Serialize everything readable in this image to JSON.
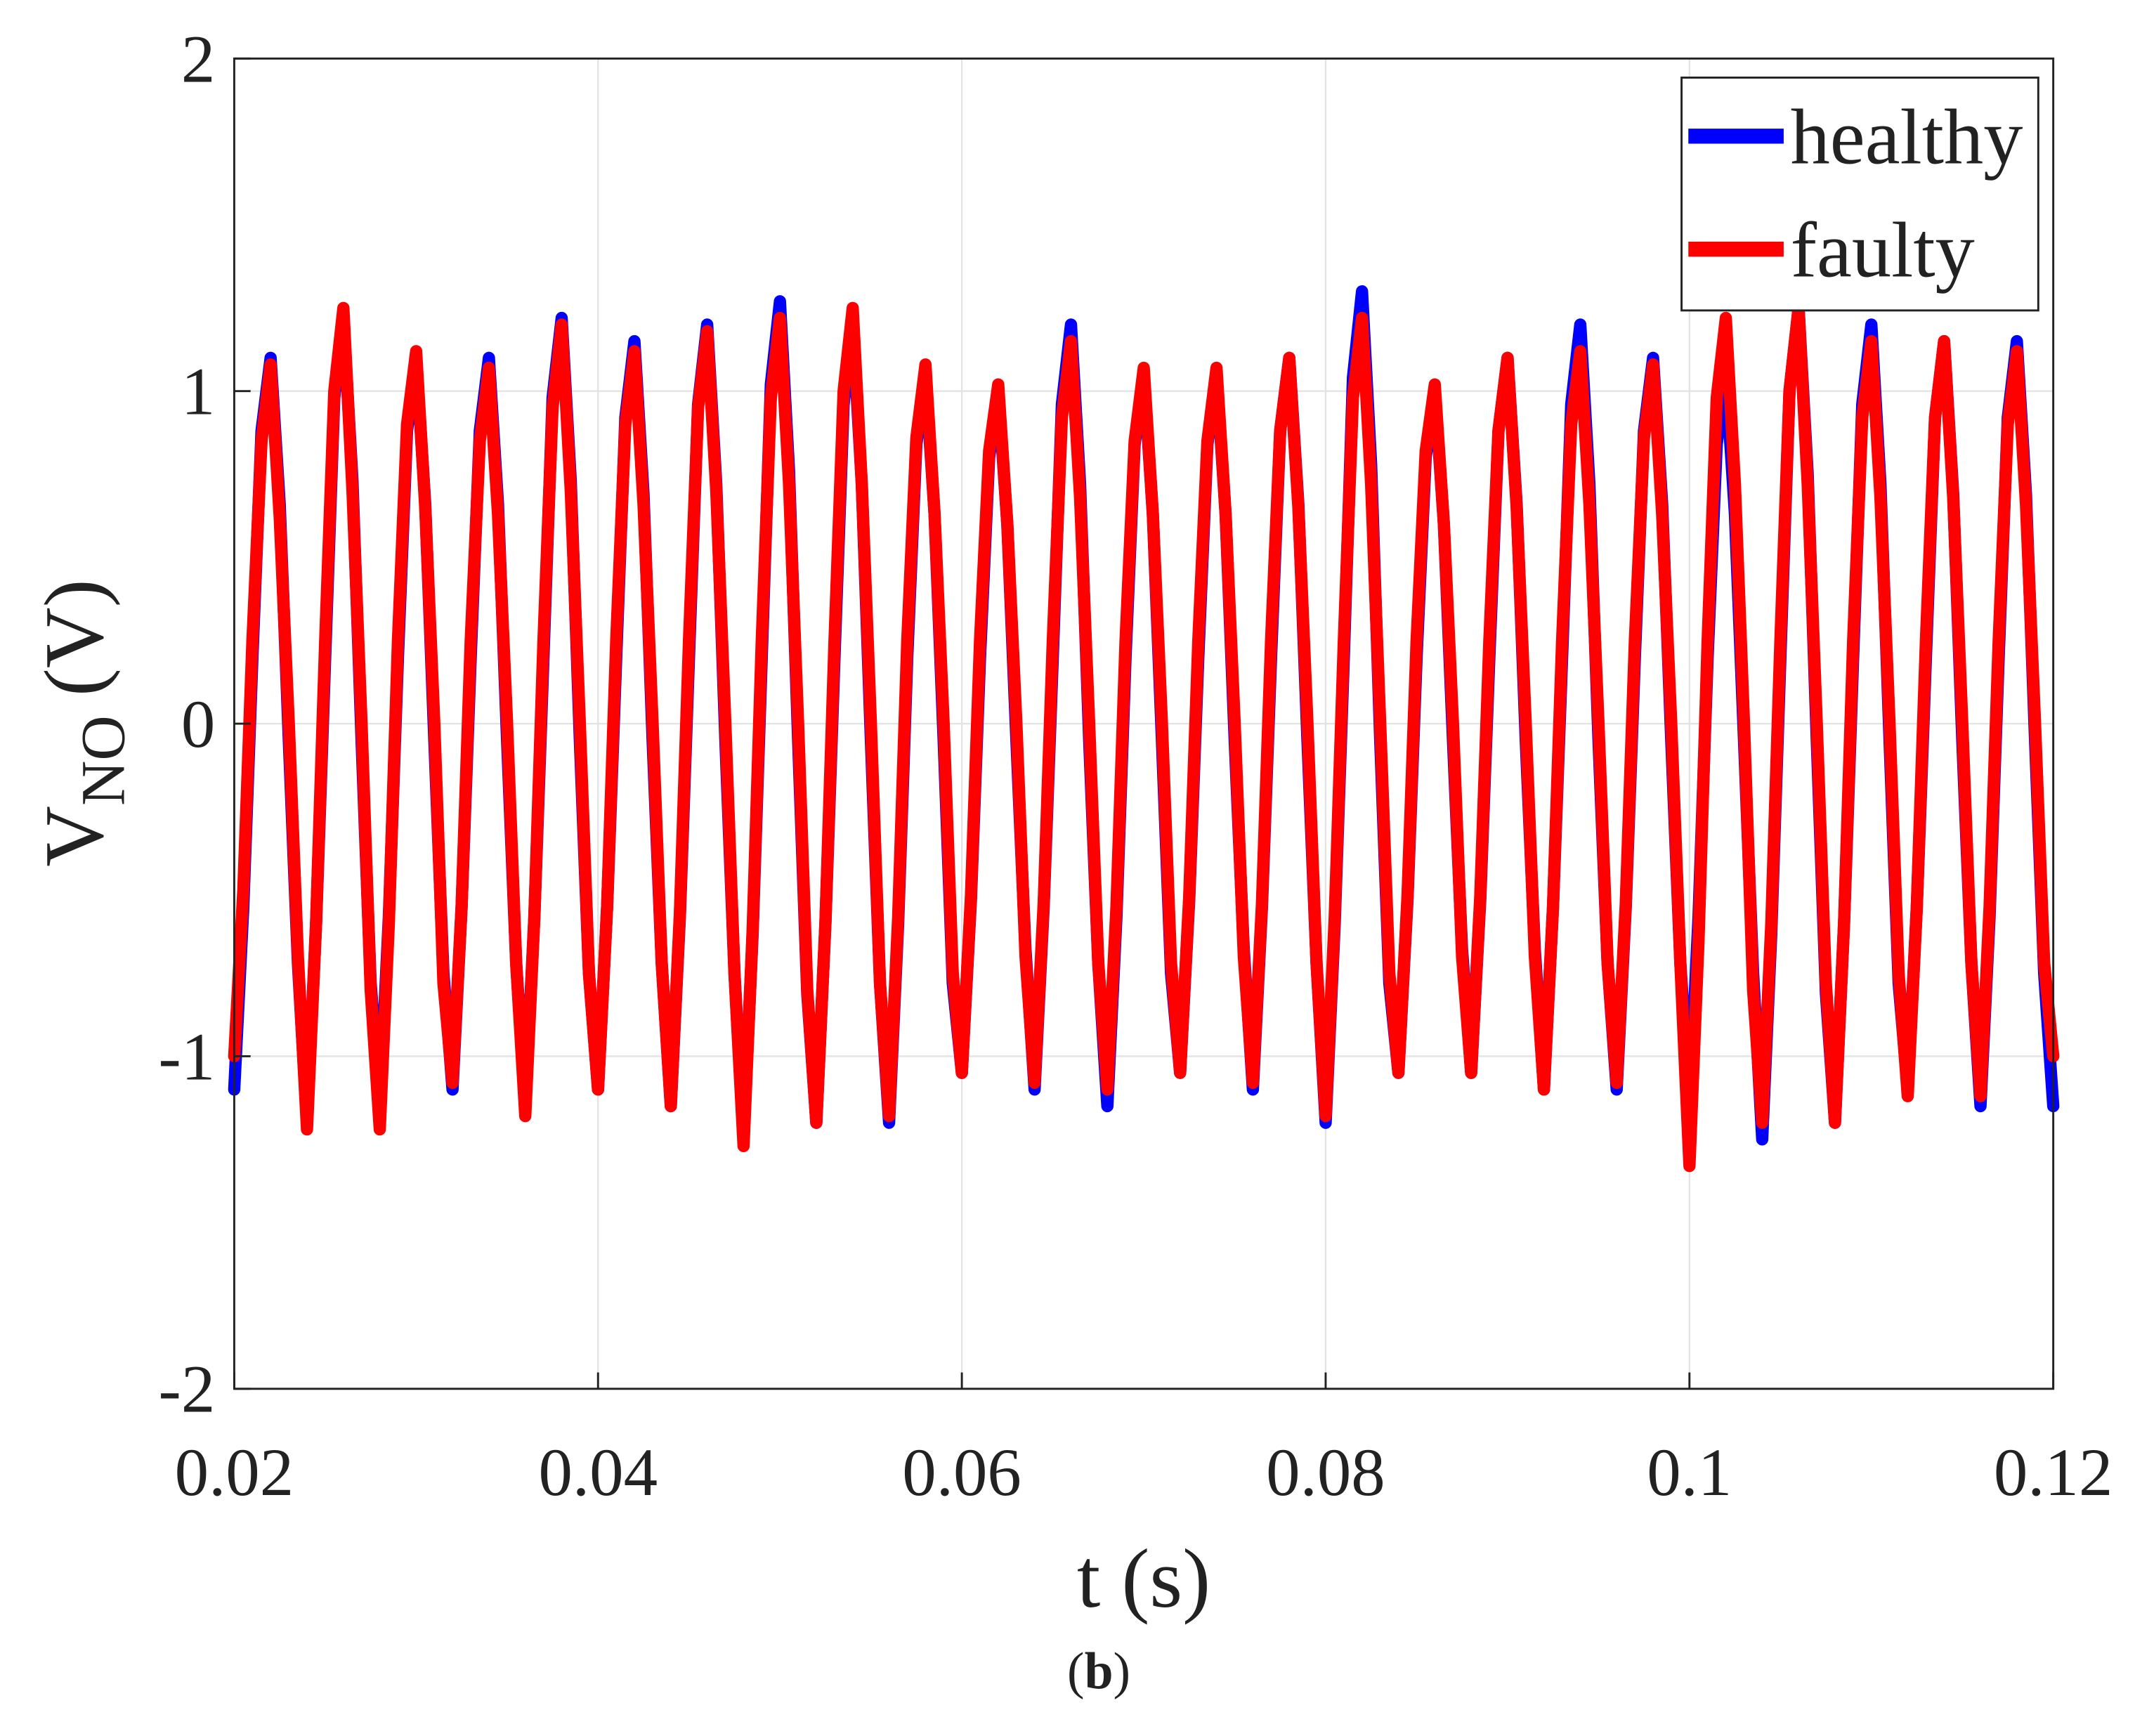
{
  "chart_data": {
    "type": "line",
    "xlabel": "t (s)",
    "ylabel": {
      "main": "V",
      "sub": "NO",
      "unit": "(V)"
    },
    "caption": "b",
    "xlim": [
      0.02,
      0.12
    ],
    "xticks": [
      0.02,
      0.04,
      0.06,
      0.08,
      0.1,
      0.12
    ],
    "ylim": [
      -2,
      2
    ],
    "yticks": [
      -2,
      -1,
      0,
      1,
      2
    ],
    "grid": true,
    "legend": "top-right",
    "x": [
      0.02,
      0.0205,
      0.021,
      0.0215,
      0.022,
      0.0225,
      0.023,
      0.0235,
      0.024,
      0.0245,
      0.025,
      0.0255,
      0.026,
      0.0265,
      0.027,
      0.0275,
      0.028,
      0.0285,
      0.029,
      0.0295,
      0.03,
      0.0305,
      0.031,
      0.0315,
      0.032,
      0.0325,
      0.033,
      0.0335,
      0.034,
      0.0345,
      0.035,
      0.0355,
      0.036,
      0.0365,
      0.037,
      0.0375,
      0.038,
      0.0385,
      0.039,
      0.0395,
      0.04,
      0.0405,
      0.041,
      0.0415,
      0.042,
      0.0425,
      0.043,
      0.0435,
      0.044,
      0.0445,
      0.045,
      0.0455,
      0.046,
      0.0465,
      0.047,
      0.0475,
      0.048,
      0.0485,
      0.049,
      0.0495,
      0.05,
      0.0505,
      0.051,
      0.0515,
      0.052,
      0.0525,
      0.053,
      0.0535,
      0.054,
      0.0545,
      0.055,
      0.0555,
      0.056,
      0.0565,
      0.057,
      0.0575,
      0.058,
      0.0585,
      0.059,
      0.0595,
      0.06,
      0.0605,
      0.061,
      0.0615,
      0.062,
      0.0625,
      0.063,
      0.0635,
      0.064,
      0.0645,
      0.065,
      0.0655,
      0.066,
      0.0665,
      0.067,
      0.0675,
      0.068,
      0.0685,
      0.069,
      0.0695,
      0.07,
      0.0705,
      0.071,
      0.0715,
      0.072,
      0.0725,
      0.073,
      0.0735,
      0.074,
      0.0745,
      0.075,
      0.0755,
      0.076,
      0.0765,
      0.077,
      0.0775,
      0.078,
      0.0785,
      0.079,
      0.0795,
      0.08,
      0.0805,
      0.081,
      0.0815,
      0.082,
      0.0825,
      0.083,
      0.0835,
      0.084,
      0.0845,
      0.085,
      0.0855,
      0.086,
      0.0865,
      0.087,
      0.0875,
      0.088,
      0.0885,
      0.089,
      0.0895,
      0.09,
      0.0905,
      0.091,
      0.0915,
      0.092,
      0.0925,
      0.093,
      0.0935,
      0.094,
      0.0945,
      0.095,
      0.0955,
      0.096,
      0.0965,
      0.097,
      0.0975,
      0.098,
      0.0985,
      0.099,
      0.0995,
      0.1,
      0.1005,
      0.101,
      0.1015,
      0.102,
      0.1025,
      0.103,
      0.1035,
      0.104,
      0.1045,
      0.105,
      0.1055,
      0.106,
      0.1065,
      0.107,
      0.1075,
      0.108,
      0.1085,
      0.109,
      0.1095,
      0.11,
      0.1105,
      0.111,
      0.1115,
      0.112,
      0.1125,
      0.113,
      0.1135,
      0.114,
      0.1145,
      0.115,
      0.1155,
      0.116,
      0.1165,
      0.117,
      0.1175,
      0.118,
      0.1185,
      0.119,
      0.1195,
      0.12
    ],
    "series": [
      {
        "name": "healthy",
        "color": "#0000ff",
        "values": [
          -1.1,
          -0.55,
          0.2,
          0.88,
          1.1,
          0.66,
          -0.05,
          -0.72,
          -1.2,
          -0.6,
          0.2,
          0.98,
          1.22,
          0.73,
          -0.05,
          -0.78,
          -1.15,
          -0.58,
          0.2,
          0.88,
          1.1,
          0.66,
          -0.05,
          -0.75,
          -1.1,
          -0.55,
          0.2,
          0.88,
          1.1,
          0.66,
          -0.05,
          -0.72,
          -1.15,
          -0.58,
          0.2,
          0.98,
          1.22,
          0.73,
          -0.05,
          -0.75,
          -1.1,
          -0.55,
          0.2,
          0.92,
          1.15,
          0.69,
          -0.05,
          -0.72,
          -1.15,
          -0.58,
          0.2,
          0.96,
          1.2,
          0.72,
          -0.05,
          -0.75,
          -1.25,
          -0.63,
          0.2,
          1.02,
          1.27,
          0.76,
          -0.05,
          -0.81,
          -1.2,
          -0.6,
          0.2,
          0.96,
          1.2,
          0.72,
          -0.05,
          -0.78,
          -1.2,
          -0.6,
          0.2,
          0.84,
          1.05,
          0.63,
          -0.05,
          -0.78,
          -1.05,
          -0.53,
          0.2,
          0.8,
          1.0,
          0.6,
          -0.05,
          -0.68,
          -1.1,
          -0.55,
          0.2,
          0.96,
          1.2,
          0.72,
          -0.05,
          -0.72,
          -1.15,
          -0.58,
          0.2,
          0.84,
          1.05,
          0.63,
          -0.05,
          -0.75,
          -1.05,
          -0.53,
          0.2,
          0.84,
          1.05,
          0.63,
          -0.05,
          -0.68,
          -1.1,
          -0.55,
          0.2,
          0.88,
          1.1,
          0.66,
          -0.05,
          -0.72,
          -1.2,
          -0.6,
          0.2,
          1.04,
          1.3,
          0.78,
          -0.05,
          -0.78,
          -1.05,
          -0.53,
          0.2,
          0.8,
          1.0,
          0.6,
          -0.05,
          -0.68,
          -1.05,
          -0.53,
          0.2,
          0.88,
          1.1,
          0.66,
          -0.05,
          -0.68,
          -1.1,
          -0.55,
          0.2,
          0.96,
          1.2,
          0.72,
          -0.05,
          -0.72,
          -1.1,
          -0.55,
          0.2,
          0.88,
          1.1,
          0.66,
          -0.05,
          -0.72,
          -1.15,
          -0.58,
          0.2,
          0.84,
          1.05,
          0.63,
          -0.05,
          -0.75,
          -1.25,
          -0.63,
          0.2,
          1.0,
          1.25,
          0.75,
          -0.05,
          -0.81,
          -1.2,
          -0.6,
          0.2,
          0.96,
          1.2,
          0.72,
          -0.05,
          -0.78,
          -1.1,
          -0.55,
          0.2,
          0.92,
          1.15,
          0.69,
          -0.05,
          -0.72,
          -1.15,
          -0.58,
          0.2,
          0.92,
          1.15,
          0.69,
          -0.05,
          -0.75,
          -1.15
        ]
      },
      {
        "name": "faulty",
        "color": "#ff0000",
        "values": [
          -1.0,
          -0.5,
          0.25,
          0.85,
          1.08,
          0.62,
          0.0,
          -0.7,
          -1.22,
          -0.6,
          0.25,
          1.0,
          1.25,
          0.7,
          0.0,
          -0.8,
          -1.22,
          -0.6,
          0.25,
          0.9,
          1.12,
          0.65,
          0.0,
          -0.78,
          -1.08,
          -0.55,
          0.25,
          0.85,
          1.07,
          0.63,
          0.0,
          -0.72,
          -1.18,
          -0.58,
          0.25,
          0.95,
          1.2,
          0.7,
          0.0,
          -0.75,
          -1.1,
          -0.55,
          0.25,
          0.9,
          1.12,
          0.66,
          0.0,
          -0.72,
          -1.15,
          -0.57,
          0.25,
          0.95,
          1.18,
          0.7,
          0.0,
          -0.75,
          -1.27,
          -0.62,
          0.25,
          0.98,
          1.22,
          0.72,
          0.0,
          -0.8,
          -1.2,
          -0.6,
          0.25,
          1.0,
          1.25,
          0.72,
          0.0,
          -0.78,
          -1.18,
          -0.58,
          0.25,
          0.86,
          1.08,
          0.63,
          0.0,
          -0.75,
          -1.05,
          -0.52,
          0.25,
          0.82,
          1.02,
          0.6,
          0.0,
          -0.7,
          -1.08,
          -0.54,
          0.25,
          0.92,
          1.15,
          0.68,
          0.0,
          -0.72,
          -1.1,
          -0.55,
          0.25,
          0.85,
          1.07,
          0.63,
          0.0,
          -0.72,
          -1.05,
          -0.52,
          0.25,
          0.85,
          1.07,
          0.63,
          0.0,
          -0.7,
          -1.08,
          -0.54,
          0.25,
          0.88,
          1.1,
          0.65,
          0.0,
          -0.72,
          -1.18,
          -0.58,
          0.25,
          0.98,
          1.22,
          0.72,
          0.0,
          -0.75,
          -1.05,
          -0.52,
          0.25,
          0.82,
          1.02,
          0.6,
          0.0,
          -0.7,
          -1.05,
          -0.52,
          0.25,
          0.88,
          1.1,
          0.65,
          0.0,
          -0.7,
          -1.1,
          -0.55,
          0.25,
          0.9,
          1.12,
          0.66,
          0.0,
          -0.72,
          -1.08,
          -0.54,
          0.25,
          0.86,
          1.08,
          0.63,
          0.0,
          -0.72,
          -1.33,
          -0.65,
          0.25,
          0.98,
          1.22,
          0.72,
          0.0,
          -0.8,
          -1.2,
          -0.6,
          0.25,
          1.0,
          1.25,
          0.72,
          0.0,
          -0.78,
          -1.2,
          -0.6,
          0.25,
          0.92,
          1.15,
          0.68,
          0.0,
          -0.75,
          -1.12,
          -0.55,
          0.25,
          0.92,
          1.15,
          0.68,
          0.0,
          -0.72,
          -1.12,
          -0.55,
          0.25,
          0.9,
          1.12,
          0.66,
          0.0,
          -0.72,
          -1.0
        ]
      }
    ]
  }
}
